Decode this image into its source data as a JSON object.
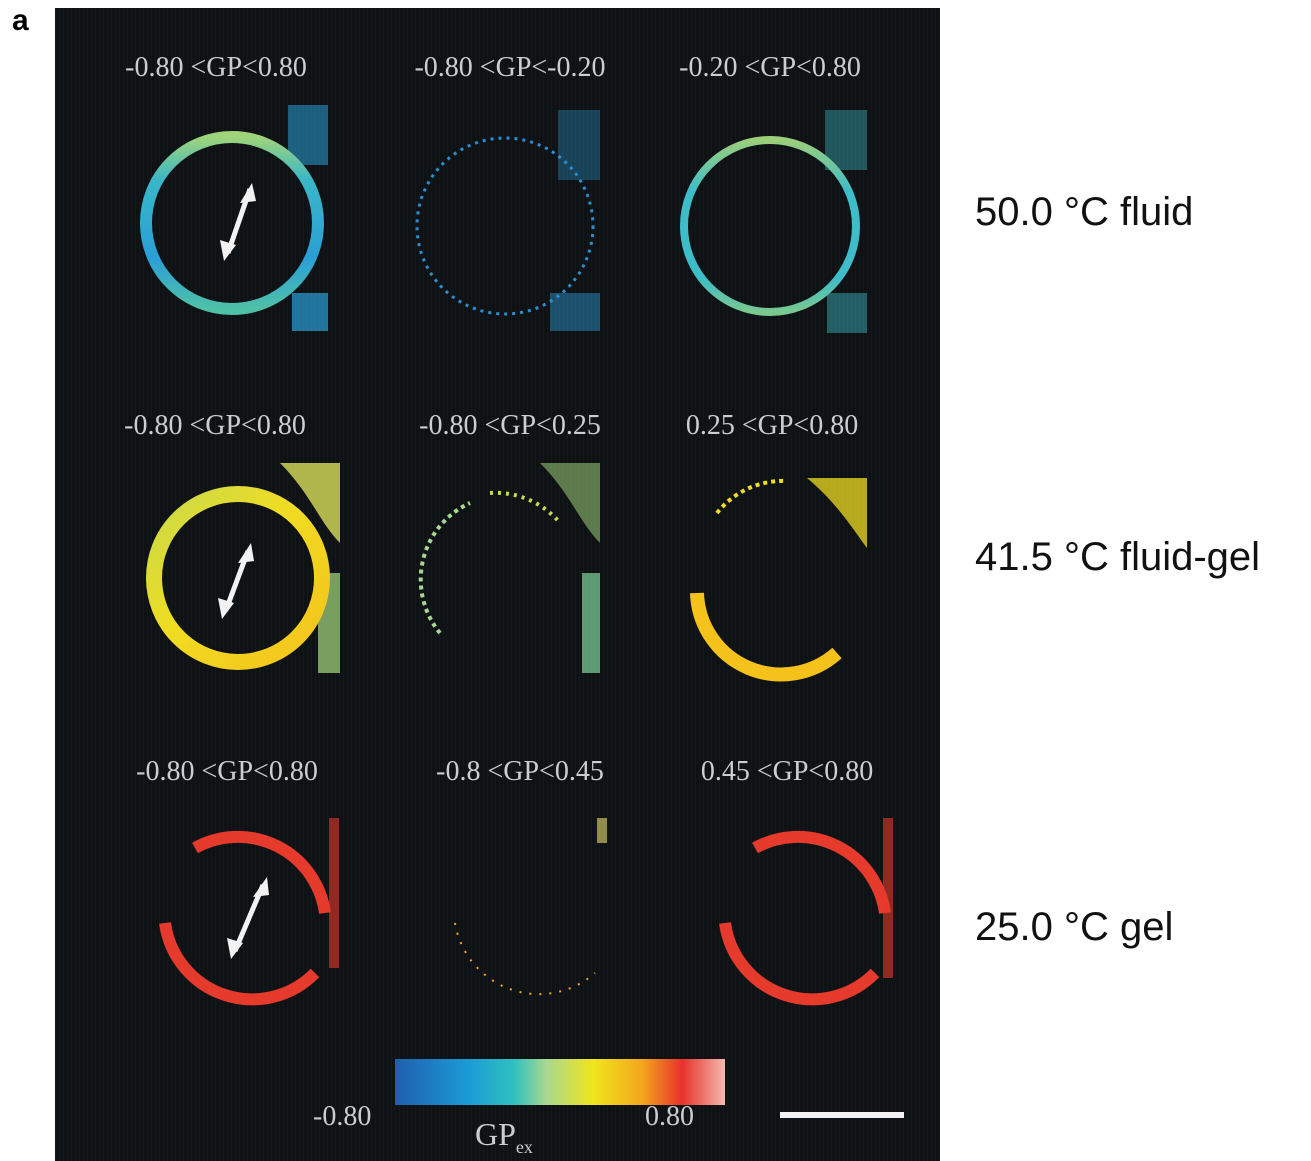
{
  "panel_letter": "a",
  "rows": [
    {
      "condition": "50.0 °C fluid",
      "ranges": [
        "-0.80 <GP<0.80",
        "-0.80 <GP<-0.20",
        "-0.20 <GP<0.80"
      ]
    },
    {
      "condition": "41.5 °C fluid-gel",
      "ranges": [
        "-0.80 <GP<0.80",
        "-0.80 <GP<0.25",
        "0.25 <GP<0.80"
      ]
    },
    {
      "condition": "25.0 °C gel",
      "ranges": [
        "-0.80 <GP<0.80",
        "-0.8 <GP<0.45",
        "0.45 <GP<0.80"
      ]
    }
  ],
  "colorbar": {
    "min_label": "-0.80",
    "max_label": "0.80",
    "title": "GP",
    "title_sub": "ex",
    "stops": [
      "#1f5fae",
      "#1b9ad6",
      "#2fc0c0",
      "#a8d890",
      "#f2e51c",
      "#f3a51e",
      "#e8322a",
      "#f4b8b0"
    ]
  },
  "colors": {
    "fluid_blue": "#2a9fd6",
    "fluid_cyan": "#3dbdc8",
    "mixed_green": "#9ccf7a",
    "mixed_yellow": "#f0dc22",
    "gel_red": "#e53a2c",
    "arrow_white": "#f2f2f2"
  }
}
